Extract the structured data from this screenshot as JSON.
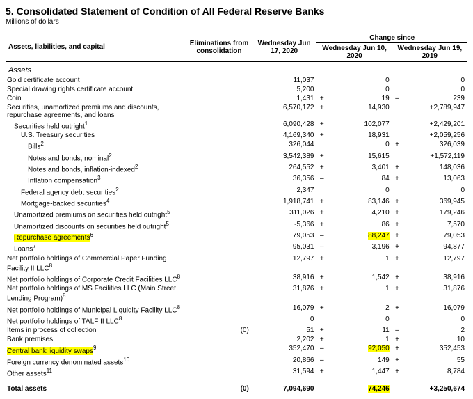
{
  "title": "5. Consolidated Statement of Condition of All Federal Reserve Banks",
  "subtitle": "Millions of dollars",
  "headers": {
    "label": "Assets, liabilities, and capital",
    "elim": "Eliminations from consolidation",
    "asof": "Wednesday Jun 17, 2020",
    "change_group": "Change since",
    "since1": "Wednesday Jun 10, 2020",
    "since2": "Wednesday Jun 19, 2019"
  },
  "section_label": "Assets",
  "rows": [
    {
      "label": "Gold certificate account",
      "indent": 0,
      "elim": "",
      "v": "11,037",
      "s1": "",
      "d1": "0",
      "s2": "",
      "d2": "0"
    },
    {
      "label": "Special drawing rights certificate account",
      "indent": 0,
      "elim": "",
      "v": "5,200",
      "s1": "",
      "d1": "0",
      "s2": "",
      "d2": "0"
    },
    {
      "label": "Coin",
      "indent": 0,
      "elim": "",
      "v": "1,431",
      "s1": "+",
      "d1": "19",
      "s2": "–",
      "d2": "239"
    },
    {
      "label": "Securities, unamortized premiums and discounts, repurchase agreements, and loans",
      "indent": 0,
      "elim": "",
      "v": "6,570,172",
      "s1": "+",
      "d1": "14,930",
      "s2": "",
      "d2": "+2,789,947"
    },
    {
      "label": "Securities held outright",
      "sup": "1",
      "indent": 1,
      "elim": "",
      "v": "6,090,428",
      "s1": "+",
      "d1": "102,077",
      "s2": "",
      "d2": "+2,429,201"
    },
    {
      "label": "U.S. Treasury securities",
      "indent": 2,
      "elim": "",
      "v": "4,169,340",
      "s1": "+",
      "d1": "18,931",
      "s2": "",
      "d2": "+2,059,256"
    },
    {
      "label": "Bills",
      "sup": "2",
      "indent": 3,
      "elim": "",
      "v": "326,044",
      "s1": "",
      "d1": "0",
      "s2": "+",
      "d2": "326,039"
    },
    {
      "label": "Notes and bonds, nominal",
      "sup": "2",
      "indent": 3,
      "elim": "",
      "v": "3,542,389",
      "s1": "+",
      "d1": "15,615",
      "s2": "",
      "d2": "+1,572,119"
    },
    {
      "label": "Notes and bonds, inflation-indexed",
      "sup": "2",
      "indent": 3,
      "elim": "",
      "v": "264,552",
      "s1": "+",
      "d1": "3,401",
      "s2": "+",
      "d2": "148,036"
    },
    {
      "label": "Inflation compensation",
      "sup": "3",
      "indent": 3,
      "elim": "",
      "v": "36,356",
      "s1": "–",
      "d1": "84",
      "s2": "+",
      "d2": "13,063"
    },
    {
      "label": "Federal agency debt securities",
      "sup": "2",
      "indent": 2,
      "elim": "",
      "v": "2,347",
      "s1": "",
      "d1": "0",
      "s2": "",
      "d2": "0"
    },
    {
      "label": "Mortgage-backed securities",
      "sup": "4",
      "indent": 2,
      "elim": "",
      "v": "1,918,741",
      "s1": "+",
      "d1": "83,146",
      "s2": "+",
      "d2": "369,945"
    },
    {
      "label": "Unamortized premiums on securities held outright",
      "sup": "5",
      "indent": 1,
      "elim": "",
      "v": "311,026",
      "s1": "+",
      "d1": "4,210",
      "s2": "+",
      "d2": "179,246"
    },
    {
      "label": "Unamortized discounts on securities held outright",
      "sup": "5",
      "indent": 1,
      "elim": "",
      "v": "-5,366",
      "s1": "+",
      "d1": "86",
      "s2": "+",
      "d2": "7,570"
    },
    {
      "label": "Repurchase agreements",
      "sup": "6",
      "indent": 1,
      "hl_label": true,
      "elim": "",
      "v": "79,053",
      "s1": "–",
      "d1": "88,247",
      "hl_d1": true,
      "s2": "+",
      "d2": "79,053"
    },
    {
      "label": "Loans",
      "sup": "7",
      "indent": 1,
      "elim": "",
      "v": "95,031",
      "s1": "–",
      "d1": "3,196",
      "s2": "+",
      "d2": "94,877"
    },
    {
      "label": "Net portfolio holdings of Commercial Paper Funding Facility II LLC",
      "sup": "8",
      "indent": 0,
      "elim": "",
      "v": "12,797",
      "s1": "+",
      "d1": "1",
      "s2": "+",
      "d2": "12,797"
    },
    {
      "label": "Net portfolio holdings of Corporate Credit Facilities LLC",
      "sup": "8",
      "indent": 0,
      "elim": "",
      "v": "38,916",
      "s1": "+",
      "d1": "1,542",
      "s2": "+",
      "d2": "38,916"
    },
    {
      "label": "Net portfolio holdings of MS Facilities LLC (Main Street Lending Program)",
      "sup": "8",
      "indent": 0,
      "elim": "",
      "v": "31,876",
      "s1": "+",
      "d1": "1",
      "s2": "+",
      "d2": "31,876"
    },
    {
      "label": "Net portfolio holdings of Municipal Liquidity Facility LLC",
      "sup": "8",
      "indent": 0,
      "elim": "",
      "v": "16,079",
      "s1": "+",
      "d1": "2",
      "s2": "+",
      "d2": "16,079"
    },
    {
      "label": "Net portfolio holdings of TALF II LLC",
      "sup": "8",
      "indent": 0,
      "elim": "",
      "v": "0",
      "s1": "",
      "d1": "0",
      "s2": "",
      "d2": "0"
    },
    {
      "label": "Items in process of collection",
      "indent": 0,
      "elim": "(0)",
      "v": "51",
      "s1": "+",
      "d1": "11",
      "s2": "–",
      "d2": "2"
    },
    {
      "label": "Bank premises",
      "indent": 0,
      "elim": "",
      "v": "2,202",
      "s1": "+",
      "d1": "1",
      "s2": "+",
      "d2": "10"
    },
    {
      "label": "Central bank liquidity swaps",
      "sup": "9",
      "indent": 0,
      "hl_label": true,
      "elim": "",
      "v": "352,470",
      "s1": "–",
      "d1": "92,050",
      "hl_d1": true,
      "s2": "+",
      "d2": "352,453"
    },
    {
      "label": "Foreign currency denominated assets",
      "sup": "10",
      "indent": 0,
      "elim": "",
      "v": "20,866",
      "s1": "–",
      "d1": "149",
      "s2": "+",
      "d2": "55"
    },
    {
      "label": "Other assets",
      "sup": "11",
      "indent": 0,
      "elim": "",
      "v": "31,594",
      "s1": "+",
      "d1": "1,447",
      "s2": "+",
      "d2": "8,784"
    }
  ],
  "total": {
    "label": "Total assets",
    "elim": "(0)",
    "v": "7,094,690",
    "s1": "–",
    "d1": "74,246",
    "hl_d1": true,
    "s2": "",
    "d2": "+3,250,674"
  }
}
